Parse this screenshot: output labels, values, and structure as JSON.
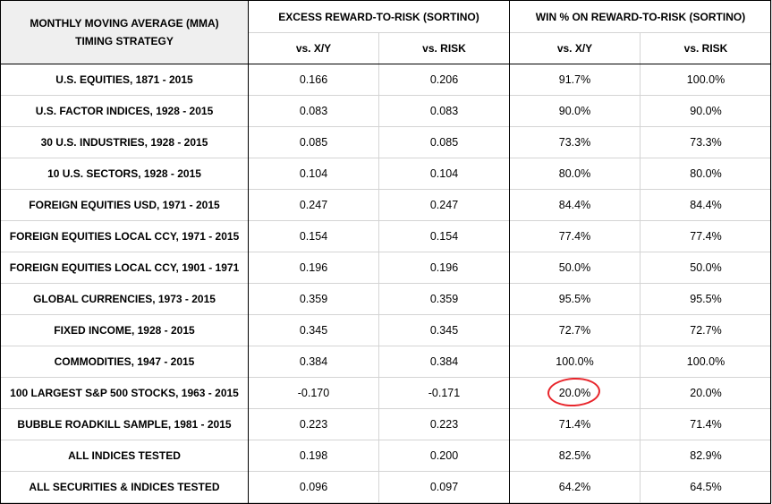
{
  "chart_data": {
    "type": "table",
    "header": {
      "corner_line1": "MONTHLY MOVING AVERAGE (MMA)",
      "corner_line2": "TIMING STRATEGY",
      "group1": "EXCESS REWARD-TO-RISK (SORTINO)",
      "group2": "WIN % ON REWARD-TO-RISK (SORTINO)",
      "sub": [
        "vs. X/Y",
        "vs. RISK",
        "vs. X/Y",
        "vs. RISK"
      ]
    },
    "rows": [
      {
        "label": "U.S. EQUITIES, 1871 - 2015",
        "cells": [
          "0.166",
          "0.206",
          "91.7%",
          "100.0%"
        ]
      },
      {
        "label": "U.S. FACTOR INDICES, 1928 - 2015",
        "cells": [
          "0.083",
          "0.083",
          "90.0%",
          "90.0%"
        ]
      },
      {
        "label": "30 U.S. INDUSTRIES, 1928 - 2015",
        "cells": [
          "0.085",
          "0.085",
          "73.3%",
          "73.3%"
        ]
      },
      {
        "label": "10 U.S. SECTORS, 1928 - 2015",
        "cells": [
          "0.104",
          "0.104",
          "80.0%",
          "80.0%"
        ]
      },
      {
        "label": "FOREIGN EQUITIES USD, 1971 - 2015",
        "cells": [
          "0.247",
          "0.247",
          "84.4%",
          "84.4%"
        ]
      },
      {
        "label": "FOREIGN EQUITIES LOCAL CCY, 1971 - 2015",
        "cells": [
          "0.154",
          "0.154",
          "77.4%",
          "77.4%"
        ]
      },
      {
        "label": "FOREIGN EQUITIES LOCAL CCY, 1901 - 1971",
        "cells": [
          "0.196",
          "0.196",
          "50.0%",
          "50.0%"
        ]
      },
      {
        "label": "GLOBAL CURRENCIES, 1973 - 2015",
        "cells": [
          "0.359",
          "0.359",
          "95.5%",
          "95.5%"
        ]
      },
      {
        "label": "FIXED INCOME, 1928 - 2015",
        "cells": [
          "0.345",
          "0.345",
          "72.7%",
          "72.7%"
        ]
      },
      {
        "label": "COMMODITIES, 1947 - 2015",
        "cells": [
          "0.384",
          "0.384",
          "100.0%",
          "100.0%"
        ]
      },
      {
        "label": "100 LARGEST S&P 500 STOCKS, 1963 - 2015",
        "cells": [
          "-0.170",
          "-0.171",
          "20.0%",
          "20.0%"
        ]
      },
      {
        "label": "BUBBLE ROADKILL SAMPLE, 1981 - 2015",
        "cells": [
          "0.223",
          "0.223",
          "71.4%",
          "71.4%"
        ]
      },
      {
        "label": "ALL INDICES TESTED",
        "cells": [
          "0.198",
          "0.200",
          "82.5%",
          "82.9%"
        ]
      },
      {
        "label": "ALL SECURITIES & INDICES TESTED",
        "cells": [
          "0.096",
          "0.097",
          "64.2%",
          "64.5%"
        ]
      }
    ],
    "highlight": {
      "row": 10,
      "column": 2,
      "color": "#e8262c",
      "shape": "hand-drawn circle"
    },
    "colors": {
      "header_corner_bg": "#efefef",
      "major_border": "#000000",
      "minor_border": "#d4d4d4"
    }
  }
}
